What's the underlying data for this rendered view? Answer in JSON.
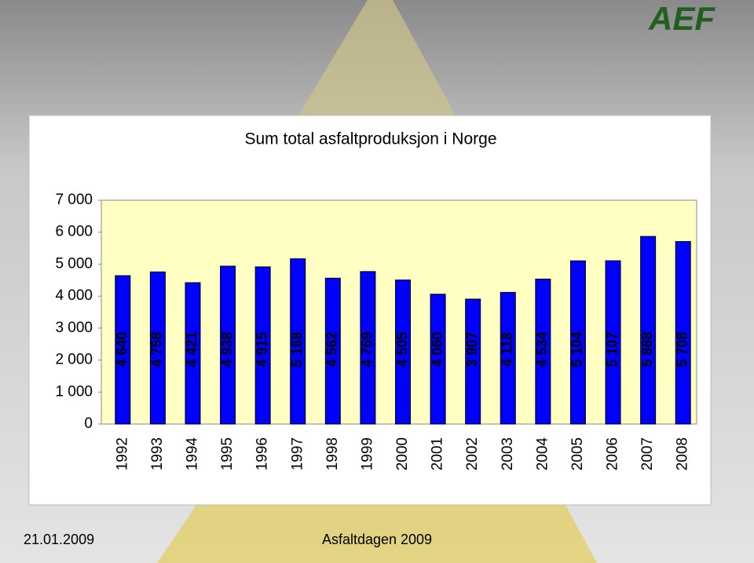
{
  "logo": "AEF",
  "footer": {
    "date": "21.01.2009",
    "event": "Asfaltdagen 2009"
  },
  "chart_data": {
    "type": "bar",
    "title": "Sum total asfaltproduksjon i Norge",
    "categories": [
      "1992",
      "1993",
      "1994",
      "1995",
      "1996",
      "1997",
      "1998",
      "1999",
      "2000",
      "2001",
      "2002",
      "2003",
      "2004",
      "2005",
      "2006",
      "2007",
      "2008"
    ],
    "values": [
      4640,
      4758,
      4421,
      4938,
      4915,
      5168,
      4562,
      4769,
      4505,
      4060,
      3907,
      4118,
      4534,
      5104,
      5107,
      5868,
      5708
    ],
    "value_labels": [
      "4 640",
      "4 758",
      "4 421",
      "4 938",
      "4 915",
      "5 168",
      "4 562",
      "4 769",
      "4 505",
      "4 060",
      "3 907",
      "4 118",
      "4 534",
      "5 104",
      "5 107",
      "5 868",
      "5 708"
    ],
    "color": "#0000ff",
    "ylim": [
      0,
      7000
    ],
    "yticks": [
      0,
      {
        "value": 1000,
        "label": "1 000"
      },
      {
        "value": 2000,
        "label": "2 000"
      },
      {
        "value": 3000,
        "label": "3 000"
      },
      {
        "value": 4000,
        "label": "4 000"
      },
      {
        "value": 5000,
        "label": "5 000"
      },
      {
        "value": 6000,
        "label": "6 000"
      },
      {
        "value": 7000,
        "label": "7 000"
      }
    ],
    "grid": false
  }
}
